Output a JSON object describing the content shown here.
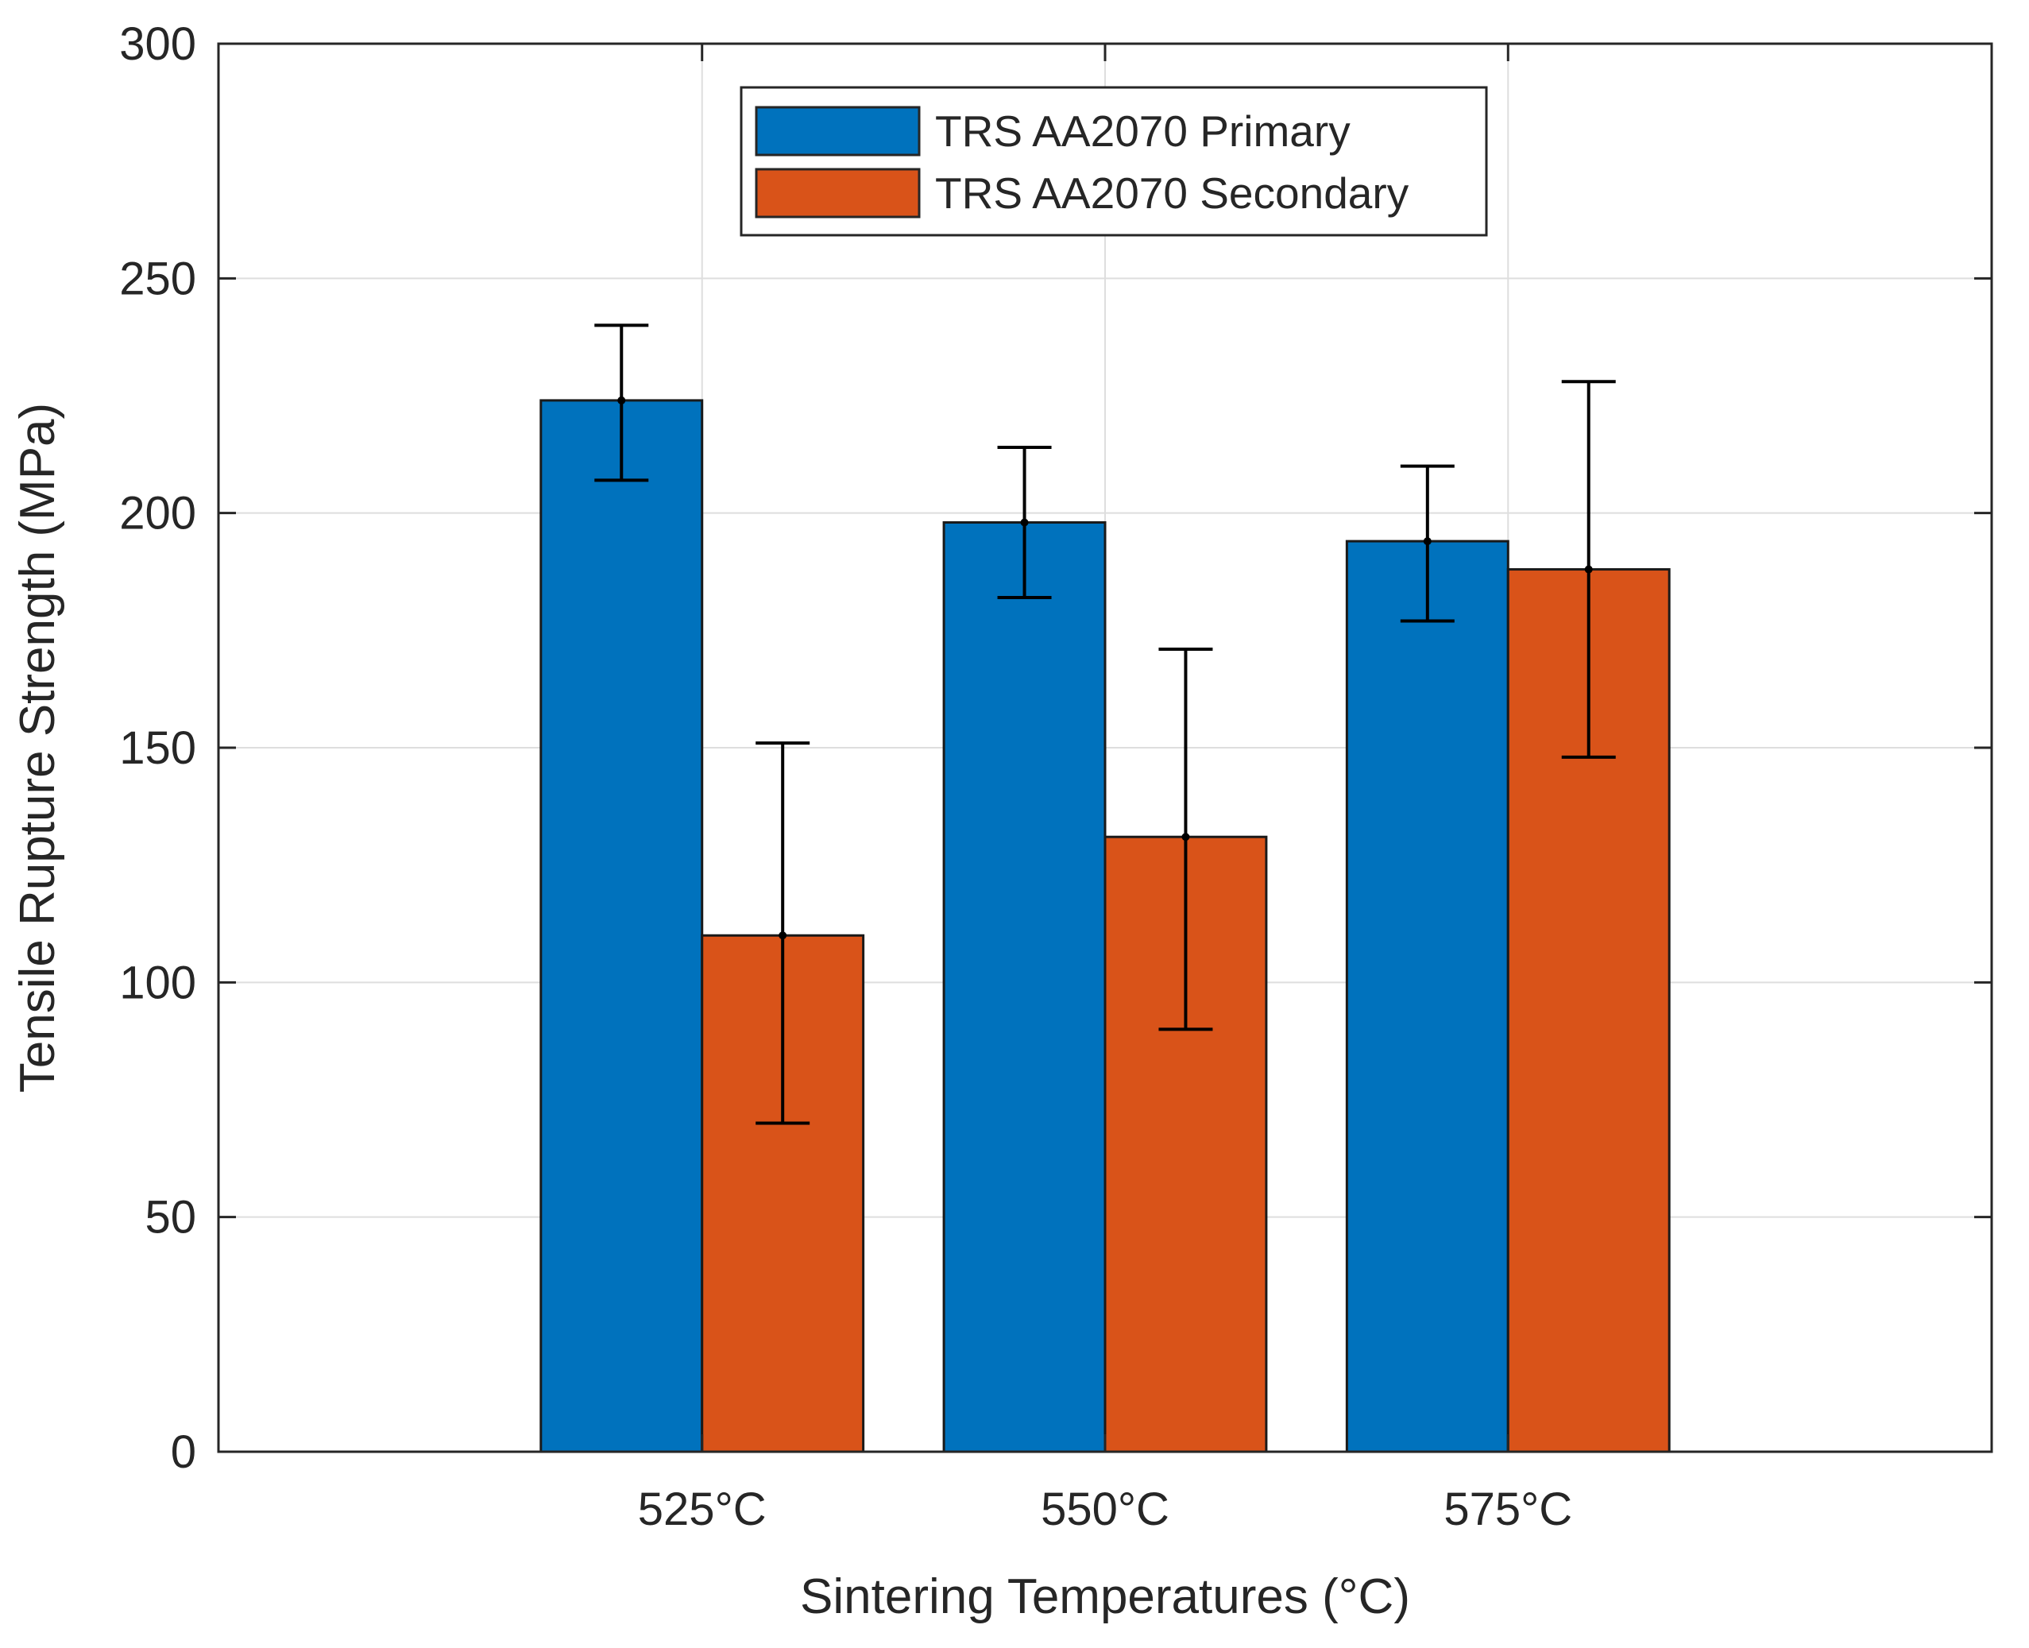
{
  "chart_data": {
    "type": "bar",
    "title": "",
    "xlabel": "Sintering Temperatures (°C)",
    "ylabel": "Tensile Rupture Strength (MPa)",
    "categories": [
      "525°C",
      "550°C",
      "575°C"
    ],
    "x_positions": [
      1,
      2,
      3
    ],
    "xlim": [
      -0.2,
      4.2
    ],
    "ylim": [
      0,
      300
    ],
    "yticks": [
      0,
      50,
      100,
      150,
      200,
      250,
      300
    ],
    "ytick_labels": [
      "0",
      "50",
      "100",
      "150",
      "200",
      "250",
      "300"
    ],
    "grid": true,
    "legend_position": "top-center",
    "series": [
      {
        "name": "TRS AA2070 Primary",
        "color": "#0072BD",
        "values": [
          224,
          198,
          194
        ],
        "err_low": [
          207,
          182,
          177
        ],
        "err_high": [
          240,
          214,
          210
        ]
      },
      {
        "name": "TRS AA2070 Secondary",
        "color": "#D95319",
        "values": [
          110,
          131,
          188
        ],
        "err_low": [
          70,
          90,
          148
        ],
        "err_high": [
          151,
          171,
          228
        ]
      }
    ]
  }
}
